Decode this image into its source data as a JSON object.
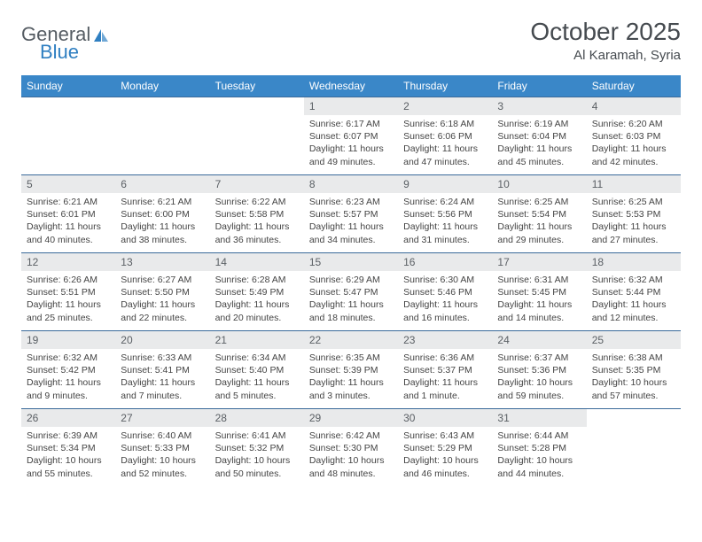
{
  "logo": {
    "general": "General",
    "blue": "Blue"
  },
  "title": "October 2025",
  "location": "Al Karamah, Syria",
  "colors": {
    "header_bg": "#3a87c8",
    "header_text": "#ffffff",
    "day_bg": "#e9eaeb",
    "border": "#3a6a9a",
    "logo_gray": "#555c63",
    "logo_blue": "#2f7fc1",
    "title_color": "#454a4f"
  },
  "day_headers": [
    "Sunday",
    "Monday",
    "Tuesday",
    "Wednesday",
    "Thursday",
    "Friday",
    "Saturday"
  ],
  "weeks": [
    [
      null,
      null,
      null,
      {
        "n": "1",
        "sr": "6:17 AM",
        "ss": "6:07 PM",
        "dl": "11 hours and 49 minutes."
      },
      {
        "n": "2",
        "sr": "6:18 AM",
        "ss": "6:06 PM",
        "dl": "11 hours and 47 minutes."
      },
      {
        "n": "3",
        "sr": "6:19 AM",
        "ss": "6:04 PM",
        "dl": "11 hours and 45 minutes."
      },
      {
        "n": "4",
        "sr": "6:20 AM",
        "ss": "6:03 PM",
        "dl": "11 hours and 42 minutes."
      }
    ],
    [
      {
        "n": "5",
        "sr": "6:21 AM",
        "ss": "6:01 PM",
        "dl": "11 hours and 40 minutes."
      },
      {
        "n": "6",
        "sr": "6:21 AM",
        "ss": "6:00 PM",
        "dl": "11 hours and 38 minutes."
      },
      {
        "n": "7",
        "sr": "6:22 AM",
        "ss": "5:58 PM",
        "dl": "11 hours and 36 minutes."
      },
      {
        "n": "8",
        "sr": "6:23 AM",
        "ss": "5:57 PM",
        "dl": "11 hours and 34 minutes."
      },
      {
        "n": "9",
        "sr": "6:24 AM",
        "ss": "5:56 PM",
        "dl": "11 hours and 31 minutes."
      },
      {
        "n": "10",
        "sr": "6:25 AM",
        "ss": "5:54 PM",
        "dl": "11 hours and 29 minutes."
      },
      {
        "n": "11",
        "sr": "6:25 AM",
        "ss": "5:53 PM",
        "dl": "11 hours and 27 minutes."
      }
    ],
    [
      {
        "n": "12",
        "sr": "6:26 AM",
        "ss": "5:51 PM",
        "dl": "11 hours and 25 minutes."
      },
      {
        "n": "13",
        "sr": "6:27 AM",
        "ss": "5:50 PM",
        "dl": "11 hours and 22 minutes."
      },
      {
        "n": "14",
        "sr": "6:28 AM",
        "ss": "5:49 PM",
        "dl": "11 hours and 20 minutes."
      },
      {
        "n": "15",
        "sr": "6:29 AM",
        "ss": "5:47 PM",
        "dl": "11 hours and 18 minutes."
      },
      {
        "n": "16",
        "sr": "6:30 AM",
        "ss": "5:46 PM",
        "dl": "11 hours and 16 minutes."
      },
      {
        "n": "17",
        "sr": "6:31 AM",
        "ss": "5:45 PM",
        "dl": "11 hours and 14 minutes."
      },
      {
        "n": "18",
        "sr": "6:32 AM",
        "ss": "5:44 PM",
        "dl": "11 hours and 12 minutes."
      }
    ],
    [
      {
        "n": "19",
        "sr": "6:32 AM",
        "ss": "5:42 PM",
        "dl": "11 hours and 9 minutes."
      },
      {
        "n": "20",
        "sr": "6:33 AM",
        "ss": "5:41 PM",
        "dl": "11 hours and 7 minutes."
      },
      {
        "n": "21",
        "sr": "6:34 AM",
        "ss": "5:40 PM",
        "dl": "11 hours and 5 minutes."
      },
      {
        "n": "22",
        "sr": "6:35 AM",
        "ss": "5:39 PM",
        "dl": "11 hours and 3 minutes."
      },
      {
        "n": "23",
        "sr": "6:36 AM",
        "ss": "5:37 PM",
        "dl": "11 hours and 1 minute."
      },
      {
        "n": "24",
        "sr": "6:37 AM",
        "ss": "5:36 PM",
        "dl": "10 hours and 59 minutes."
      },
      {
        "n": "25",
        "sr": "6:38 AM",
        "ss": "5:35 PM",
        "dl": "10 hours and 57 minutes."
      }
    ],
    [
      {
        "n": "26",
        "sr": "6:39 AM",
        "ss": "5:34 PM",
        "dl": "10 hours and 55 minutes."
      },
      {
        "n": "27",
        "sr": "6:40 AM",
        "ss": "5:33 PM",
        "dl": "10 hours and 52 minutes."
      },
      {
        "n": "28",
        "sr": "6:41 AM",
        "ss": "5:32 PM",
        "dl": "10 hours and 50 minutes."
      },
      {
        "n": "29",
        "sr": "6:42 AM",
        "ss": "5:30 PM",
        "dl": "10 hours and 48 minutes."
      },
      {
        "n": "30",
        "sr": "6:43 AM",
        "ss": "5:29 PM",
        "dl": "10 hours and 46 minutes."
      },
      {
        "n": "31",
        "sr": "6:44 AM",
        "ss": "5:28 PM",
        "dl": "10 hours and 44 minutes."
      },
      null
    ]
  ],
  "labels": {
    "sunrise": "Sunrise: ",
    "sunset": "Sunset: ",
    "daylight": "Daylight: "
  }
}
